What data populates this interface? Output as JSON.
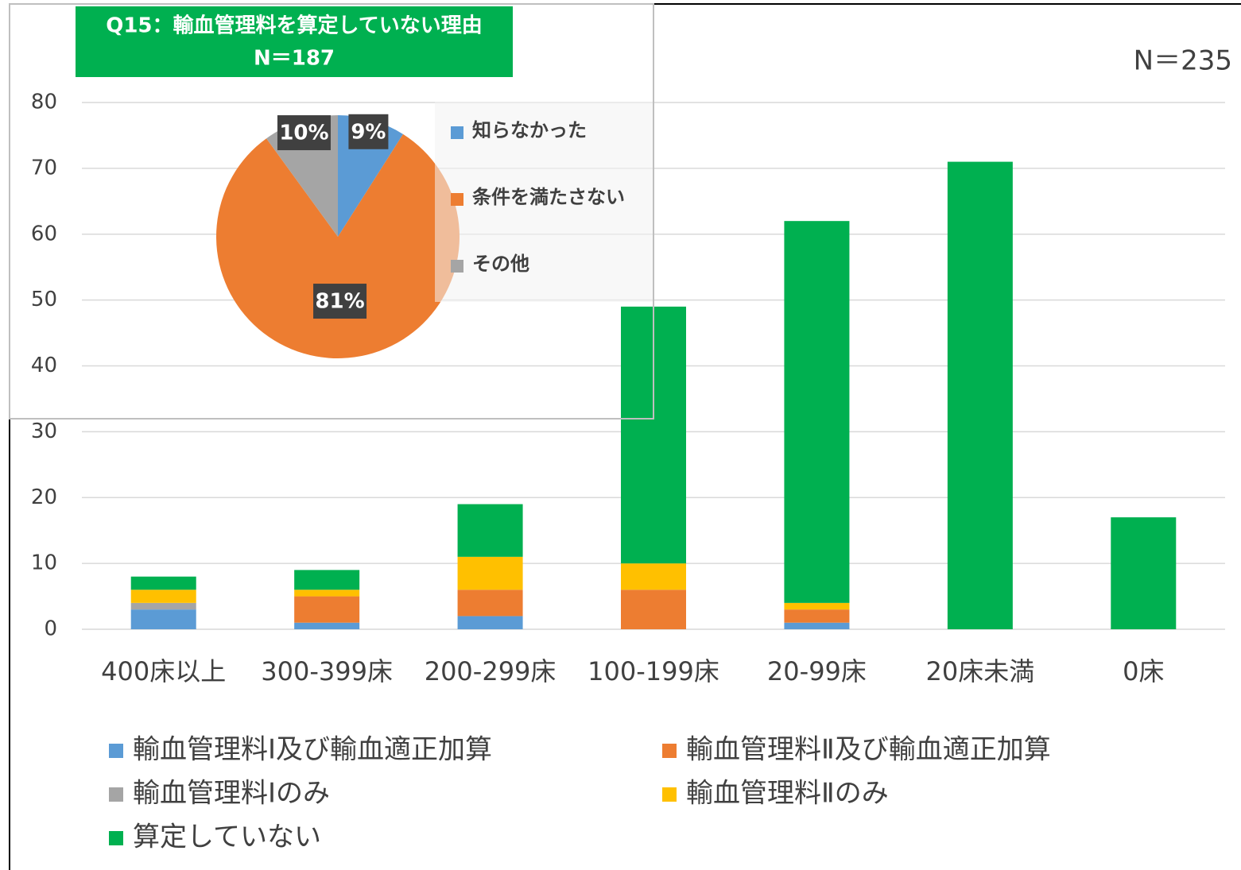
{
  "chart_data": [
    {
      "type": "bar",
      "stacked": true,
      "annotation": "N＝235",
      "categories": [
        "400床以上",
        "300-399床",
        "200-299床",
        "100-199床",
        "20-99床",
        "20床未満",
        "0床"
      ],
      "series": [
        {
          "name": "輸血管理料Ⅰ及び輸血適正加算",
          "color": "#5b9bd5",
          "values": [
            3,
            1,
            2,
            0,
            1,
            0,
            0
          ]
        },
        {
          "name": "輸血管理料Ⅱ及び輸血適正加算",
          "color": "#ed7d31",
          "values": [
            0,
            4,
            4,
            6,
            2,
            0,
            0
          ]
        },
        {
          "name": "輸血管理料Ⅰのみ",
          "color": "#a5a5a5",
          "values": [
            1,
            0,
            0,
            0,
            0,
            0,
            0
          ]
        },
        {
          "name": "輸血管理料Ⅱのみ",
          "color": "#ffc000",
          "values": [
            2,
            1,
            5,
            4,
            1,
            0,
            0
          ]
        },
        {
          "name": "算定していない",
          "color": "#00b050",
          "values": [
            2,
            3,
            8,
            39,
            58,
            71,
            17
          ]
        }
      ],
      "ylim": [
        0,
        80
      ],
      "yticks": [
        0,
        10,
        20,
        30,
        40,
        50,
        60,
        70,
        80
      ],
      "grid": true,
      "legend": "bottom"
    },
    {
      "type": "pie",
      "title": "Q15：輸血管理料を算定していない理由",
      "subtitle": "N＝187",
      "categories": [
        "知らなかった",
        "条件を満たさない",
        "その他"
      ],
      "values": [
        9,
        81,
        10
      ],
      "value_labels": [
        "9%",
        "81%",
        "10%"
      ],
      "colors": [
        "#5b9bd5",
        "#ed7d31",
        "#a5a5a5"
      ],
      "legend": "right"
    }
  ]
}
